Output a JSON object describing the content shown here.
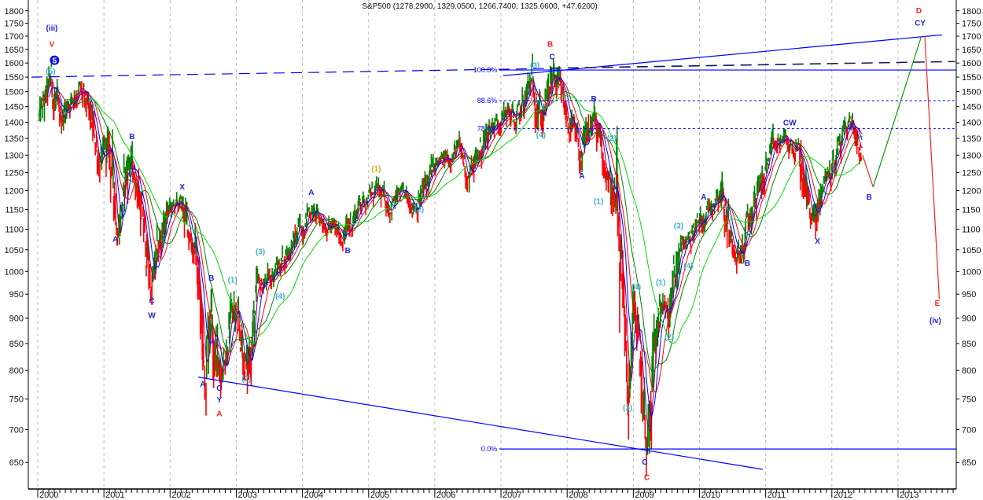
{
  "chart_data": {
    "type": "candlestick-bars",
    "title": "S&P500 (1278.2900, 1329.0500, 1266.7400, 1325.6600, +47.6200)",
    "y_scale": "log",
    "ylim": [
      600,
      1820
    ],
    "xlim": [
      1999.85,
      2013.95
    ],
    "y_ticks": [
      650,
      700,
      750,
      800,
      850,
      900,
      950,
      1000,
      1050,
      1100,
      1150,
      1200,
      1250,
      1300,
      1350,
      1400,
      1450,
      1500,
      1550,
      1600,
      1650,
      1700,
      1750,
      1800
    ],
    "x_ticks": [
      "2000",
      "2001",
      "2002",
      "2003",
      "2004",
      "2005",
      "2006",
      "2007",
      "2008",
      "2009",
      "2010",
      "2011",
      "2012",
      "2013"
    ],
    "grid": "vertical dashed at year boundaries",
    "colors": {
      "up": "#008000",
      "down": "#ff0000",
      "ma1": "#800080",
      "ma2": "#0000ff",
      "ma3": "#ff0000",
      "ma4": "#008000",
      "ma5": "#00e000",
      "line": "#0000ff",
      "wave_blue": "#2222dd",
      "wave_red": "#ff2020",
      "wave_paren": "#40b0d0",
      "wave_gold": "#c8b400"
    },
    "price_path": [
      [
        2000.0,
        1420
      ],
      [
        2000.08,
        1460
      ],
      [
        2000.18,
        1540
      ],
      [
        2000.3,
        1400
      ],
      [
        2000.45,
        1470
      ],
      [
        2000.6,
        1510
      ],
      [
        2000.75,
        1430
      ],
      [
        2000.95,
        1260
      ],
      [
        2001.05,
        1340
      ],
      [
        2001.2,
        1110
      ],
      [
        2001.36,
        1300
      ],
      [
        2001.5,
        1200
      ],
      [
        2001.7,
        965
      ],
      [
        2001.85,
        1090
      ],
      [
        2001.95,
        1150
      ],
      [
        2002.15,
        1165
      ],
      [
        2002.37,
        1040
      ],
      [
        2002.5,
        800
      ],
      [
        2002.6,
        955
      ],
      [
        2002.72,
        790
      ],
      [
        2002.94,
        920
      ],
      [
        2003.14,
        800
      ],
      [
        2003.3,
        955
      ],
      [
        2003.6,
        1010
      ],
      [
        2003.85,
        1070
      ],
      [
        2004.08,
        1150
      ],
      [
        2004.3,
        1120
      ],
      [
        2004.6,
        1080
      ],
      [
        2004.85,
        1170
      ],
      [
        2005.1,
        1200
      ],
      [
        2005.3,
        1160
      ],
      [
        2005.45,
        1190
      ],
      [
        2005.7,
        1160
      ],
      [
        2005.95,
        1260
      ],
      [
        2006.35,
        1320
      ],
      [
        2006.5,
        1240
      ],
      [
        2006.8,
        1380
      ],
      [
        2007.1,
        1440
      ],
      [
        2007.2,
        1390
      ],
      [
        2007.45,
        1545
      ],
      [
        2007.6,
        1410
      ],
      [
        2007.77,
        1560
      ],
      [
        2007.95,
        1440
      ],
      [
        2008.2,
        1290
      ],
      [
        2008.37,
        1420
      ],
      [
        2008.6,
        1240
      ],
      [
        2008.72,
        1150
      ],
      [
        2008.82,
        880
      ],
      [
        2008.9,
        760
      ],
      [
        2009.0,
        910
      ],
      [
        2009.1,
        800
      ],
      [
        2009.17,
        680
      ],
      [
        2009.3,
        850
      ],
      [
        2009.4,
        940
      ],
      [
        2009.5,
        890
      ],
      [
        2009.68,
        1050
      ],
      [
        2009.98,
        1120
      ],
      [
        2010.3,
        1210
      ],
      [
        2010.45,
        1080
      ],
      [
        2010.6,
        1040
      ],
      [
        2010.85,
        1200
      ],
      [
        2011.1,
        1320
      ],
      [
        2011.25,
        1350
      ],
      [
        2011.5,
        1300
      ],
      [
        2011.62,
        1170
      ],
      [
        2011.73,
        1120
      ],
      [
        2011.85,
        1230
      ],
      [
        2011.97,
        1260
      ],
      [
        2012.15,
        1370
      ],
      [
        2012.27,
        1410
      ],
      [
        2012.44,
        1310
      ]
    ],
    "moving_averages": [
      "ma1",
      "ma2",
      "ma3",
      "ma4",
      "ma5"
    ],
    "fib_levels": [
      {
        "label": "100.0%",
        "price": 1575,
        "style": "solid"
      },
      {
        "label": "88.6%",
        "price": 1470,
        "style": "dotted"
      },
      {
        "label": "78.6%",
        "price": 1380,
        "style": "dotted"
      },
      {
        "label": "0.0%",
        "price": 670,
        "style": "solid"
      }
    ],
    "trendlines": [
      {
        "name": "lower-support-trendline",
        "from": [
          2002.4,
          788
        ],
        "to": [
          2010.93,
          640
        ],
        "color": "#0000ff",
        "dash": false
      },
      {
        "name": "upper-resistance-trendline",
        "from": [
          2007.01,
          1555
        ],
        "to": [
          2013.64,
          1705
        ],
        "color": "#0000ff",
        "dash": false
      },
      {
        "name": "long-dashed-trendline",
        "from": [
          1999.88,
          1550
        ],
        "to": [
          2013.84,
          1605
        ],
        "color": "#0000ff",
        "dash": true
      },
      {
        "name": "black-dashed-trendline",
        "from": [
          2007.72,
          1582
        ],
        "to": [
          2013.84,
          1606
        ],
        "color": "#222222",
        "dash": true
      },
      {
        "name": "projection-down-b",
        "from": [
          2012.44,
          1300
        ],
        "to": [
          2012.6,
          1210
        ],
        "color": "#ff2020",
        "dash": false
      },
      {
        "name": "projection-up-d",
        "from": [
          2012.6,
          1210
        ],
        "to": [
          2013.33,
          1700
        ],
        "color": "#00a000",
        "dash": false
      },
      {
        "name": "projection-down-e",
        "from": [
          2013.38,
          1700
        ],
        "to": [
          2013.6,
          940
        ],
        "color": "#ff2020",
        "dash": false
      }
    ],
    "wave_labels": [
      {
        "text": "(iii)",
        "x": 2000.19,
        "p": 1730,
        "c": "blue"
      },
      {
        "text": "V",
        "x": 2000.19,
        "p": 1668,
        "c": "red"
      },
      {
        "text": "5",
        "x": 2000.23,
        "p": 1610,
        "c": "circle"
      },
      {
        "text": "(5)",
        "x": 2000.17,
        "p": 1570,
        "c": "paren"
      },
      {
        "text": "B",
        "x": 2001.4,
        "p": 1355,
        "c": "blue"
      },
      {
        "text": "A",
        "x": 2001.15,
        "p": 1075,
        "c": "blue"
      },
      {
        "text": "X",
        "x": 2002.16,
        "p": 1210,
        "c": "blue"
      },
      {
        "text": "C",
        "x": 2001.7,
        "p": 935,
        "c": "blue"
      },
      {
        "text": "W",
        "x": 2001.7,
        "p": 905,
        "c": "blue"
      },
      {
        "text": "B",
        "x": 2002.6,
        "p": 985,
        "c": "blue"
      },
      {
        "text": "(1)",
        "x": 2002.92,
        "p": 980,
        "c": "paren"
      },
      {
        "text": "A",
        "x": 2002.47,
        "p": 775,
        "c": "blue"
      },
      {
        "text": "C",
        "x": 2002.72,
        "p": 768,
        "c": "blue"
      },
      {
        "text": "Y",
        "x": 2002.72,
        "p": 748,
        "c": "blue"
      },
      {
        "text": "A",
        "x": 2002.72,
        "p": 725,
        "c": "red"
      },
      {
        "text": "(2)",
        "x": 2003.13,
        "p": 785,
        "c": "paren"
      },
      {
        "text": "(3)",
        "x": 2003.34,
        "p": 1045,
        "c": "paren"
      },
      {
        "text": "(4)",
        "x": 2003.64,
        "p": 945,
        "c": "paren"
      },
      {
        "text": "A",
        "x": 2004.11,
        "p": 1195,
        "c": "blue"
      },
      {
        "text": "B",
        "x": 2004.66,
        "p": 1048,
        "c": "blue"
      },
      {
        "text": "(1)",
        "x": 2005.09,
        "p": 1260,
        "c": "gold"
      },
      {
        "text": "(2)",
        "x": 2005.74,
        "p": 1150,
        "c": "paren"
      },
      {
        "text": "B",
        "x": 2007.72,
        "p": 1668,
        "c": "red"
      },
      {
        "text": "C",
        "x": 2007.75,
        "p": 1622,
        "c": "blue"
      },
      {
        "text": "(3)",
        "x": 2007.49,
        "p": 1590,
        "c": "paren"
      },
      {
        "text": "(4)",
        "x": 2007.58,
        "p": 1360,
        "c": "paren"
      },
      {
        "text": "B",
        "x": 2008.38,
        "p": 1475,
        "c": "blue"
      },
      {
        "text": "A",
        "x": 2008.2,
        "p": 1240,
        "c": "blue"
      },
      {
        "text": "(1)",
        "x": 2008.45,
        "p": 1170,
        "c": "paren"
      },
      {
        "text": "(2)",
        "x": 2008.65,
        "p": 1350,
        "c": "paren"
      },
      {
        "text": "(4)",
        "x": 2009.02,
        "p": 965,
        "c": "paren"
      },
      {
        "text": "(3)",
        "x": 2008.89,
        "p": 735,
        "c": "paren"
      },
      {
        "text": "C",
        "x": 2009.15,
        "p": 650,
        "c": "blue"
      },
      {
        "text": "C",
        "x": 2009.18,
        "p": 628,
        "c": "red"
      },
      {
        "text": "(1)",
        "x": 2009.39,
        "p": 975,
        "c": "paren"
      },
      {
        "text": "(2)",
        "x": 2009.52,
        "p": 862,
        "c": "paren"
      },
      {
        "text": "(3)",
        "x": 2009.66,
        "p": 1108,
        "c": "paren"
      },
      {
        "text": "(4)",
        "x": 2009.81,
        "p": 1012,
        "c": "paren"
      },
      {
        "text": "A",
        "x": 2010.04,
        "p": 1182,
        "c": "blue"
      },
      {
        "text": "B",
        "x": 2010.7,
        "p": 1018,
        "c": "blue"
      },
      {
        "text": "CW",
        "x": 2011.34,
        "p": 1398,
        "c": "blue"
      },
      {
        "text": "X",
        "x": 2011.76,
        "p": 1070,
        "c": "blue"
      },
      {
        "text": "A",
        "x": 2012.27,
        "p": 1385,
        "c": "blue"
      },
      {
        "text": "B",
        "x": 2012.54,
        "p": 1182,
        "c": "blue"
      },
      {
        "text": "D",
        "x": 2013.29,
        "p": 1800,
        "c": "red"
      },
      {
        "text": "CY",
        "x": 2013.31,
        "p": 1750,
        "c": "blue"
      },
      {
        "text": "E",
        "x": 2013.57,
        "p": 930,
        "c": "red"
      },
      {
        "text": "(iv)",
        "x": 2013.54,
        "p": 895,
        "c": "blue"
      }
    ]
  }
}
